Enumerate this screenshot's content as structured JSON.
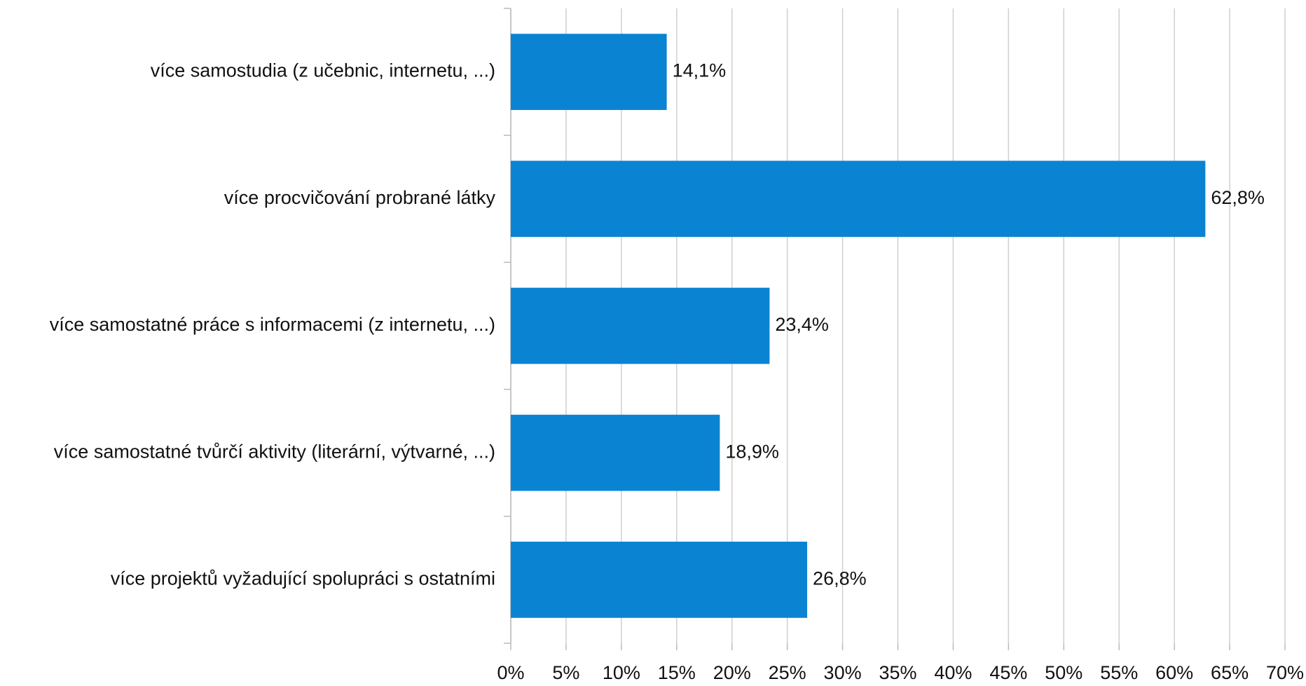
{
  "chart_data": {
    "type": "bar",
    "orientation": "horizontal",
    "categories": [
      "více samostudia (z učebnic, internetu, ...)",
      "více procvičování probrané látky",
      "více samostatné práce s informacemi (z internetu, ...)",
      "více samostatné tvůrčí aktivity (literární, výtvarné, ...)",
      "více projektů vyžadující spolupráci s ostatními"
    ],
    "values": [
      14.1,
      62.8,
      23.4,
      18.9,
      26.8
    ],
    "value_labels": [
      "14,1%",
      "62,8%",
      "23,4%",
      "18,9%",
      "26,8%"
    ],
    "color": "#0a84d2",
    "xlim": [
      0,
      70
    ],
    "xticks": [
      {
        "value": 0,
        "label": "0%"
      },
      {
        "value": 5,
        "label": "5%"
      },
      {
        "value": 10,
        "label": "10%"
      },
      {
        "value": 15,
        "label": "15%"
      },
      {
        "value": 20,
        "label": "20%"
      },
      {
        "value": 25,
        "label": "25%"
      },
      {
        "value": 30,
        "label": "30%"
      },
      {
        "value": 35,
        "label": "35%"
      },
      {
        "value": 40,
        "label": "40%"
      },
      {
        "value": 45,
        "label": "45%"
      },
      {
        "value": 50,
        "label": "50%"
      },
      {
        "value": 55,
        "label": "55%"
      },
      {
        "value": 60,
        "label": "60%"
      },
      {
        "value": 65,
        "label": "65%"
      },
      {
        "value": 70,
        "label": "70%"
      }
    ],
    "grid": true
  }
}
